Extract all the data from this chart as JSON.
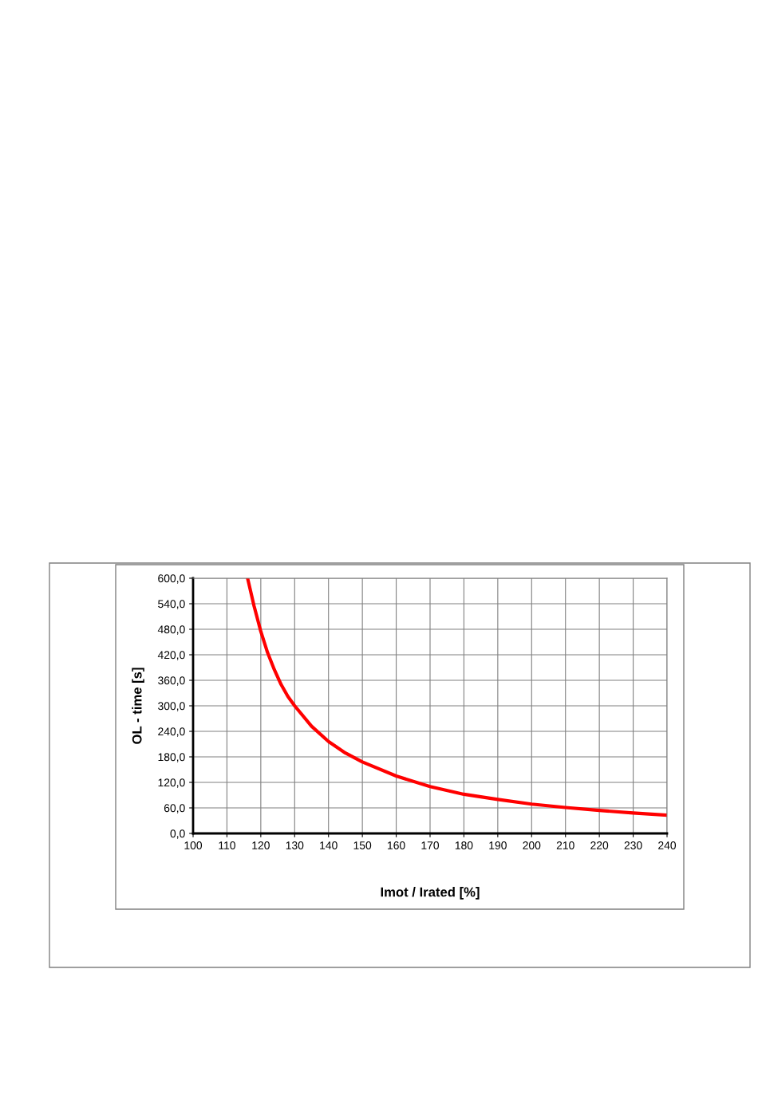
{
  "chart_data": {
    "type": "line",
    "xlabel": "Imot / Irated [%]",
    "ylabel": "OL - time [s]",
    "series": [
      {
        "color": "#ff0000",
        "x": [
          116.1,
          118,
          120,
          122,
          124,
          126,
          128,
          130,
          135,
          140,
          145,
          150,
          160,
          170,
          180,
          190,
          200,
          210,
          220,
          230,
          240
        ],
        "values": [
          600,
          535,
          475,
          425,
          385,
          350,
          322,
          300,
          252,
          216,
          189,
          168,
          135,
          110,
          92,
          80,
          69,
          61,
          54,
          48,
          43
        ]
      }
    ],
    "xlim": [
      100,
      240
    ],
    "xticks": [
      100,
      110,
      120,
      130,
      140,
      150,
      160,
      170,
      180,
      190,
      200,
      210,
      220,
      230,
      240
    ],
    "ylim": [
      0,
      600
    ],
    "yticks": [
      {
        "value": 0,
        "label": "0,0"
      },
      {
        "value": 60,
        "label": "60,0"
      },
      {
        "value": 120,
        "label": "120,0"
      },
      {
        "value": 180,
        "label": "180,0"
      },
      {
        "value": 240,
        "label": "240,0"
      },
      {
        "value": 300,
        "label": "300,0"
      },
      {
        "value": 360,
        "label": "360,0"
      },
      {
        "value": 420,
        "label": "420,0"
      },
      {
        "value": 480,
        "label": "480,0"
      },
      {
        "value": 540,
        "label": "540,0"
      },
      {
        "value": 600,
        "label": "600,0"
      }
    ],
    "grid": true,
    "marker": "none",
    "line_style": "solid"
  }
}
